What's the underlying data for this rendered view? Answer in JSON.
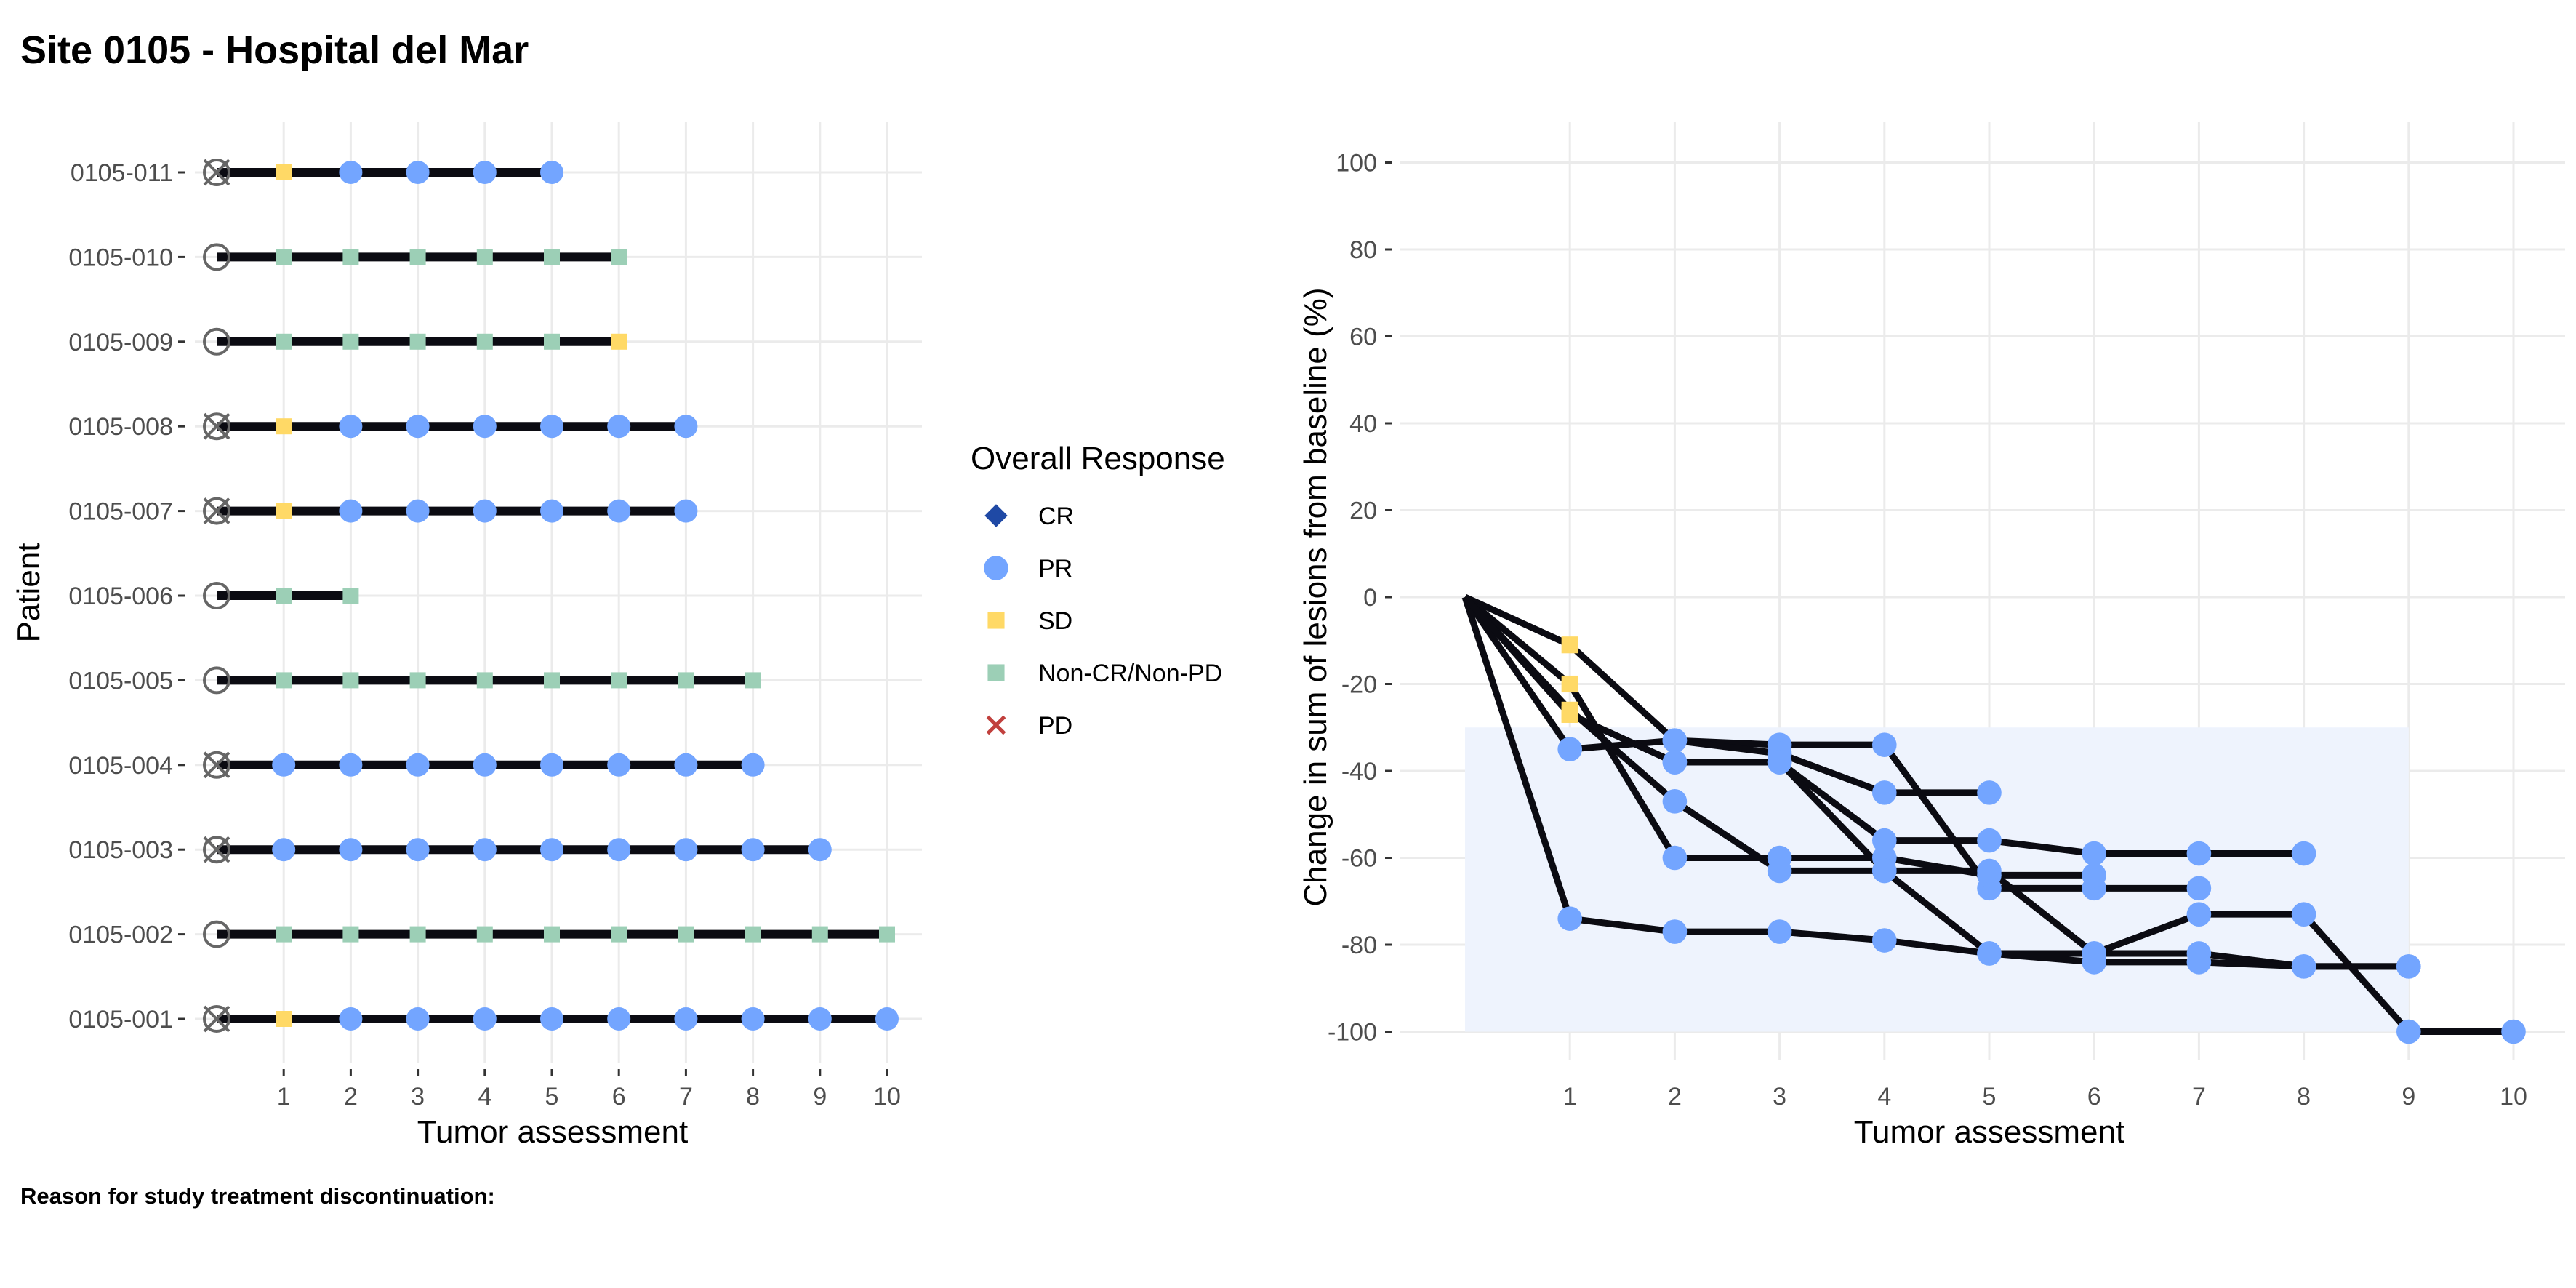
{
  "page": {
    "title": "Site 0105 - Hospital del Mar",
    "footnote": "Reason for study treatment discontinuation:"
  },
  "colors": {
    "CR": "#1f49a5",
    "PR": "#73a5ff",
    "SD": "#ffd966",
    "Non-CR/Non-PD": "#9ccfb6",
    "PD": "#c1403d",
    "line": "#0b0b12",
    "grid": "#ebebeb",
    "band": "#eef3fd",
    "baseline_marker": "#666666"
  },
  "legend": {
    "title": "Overall Response",
    "items": [
      {
        "label": "CR",
        "shape": "diamond"
      },
      {
        "label": "PR",
        "shape": "circle"
      },
      {
        "label": "SD",
        "shape": "square"
      },
      {
        "label": "Non-CR/Non-PD",
        "shape": "square"
      },
      {
        "label": "PD",
        "shape": "cross"
      }
    ]
  },
  "chart_data": [
    {
      "type": "scatter",
      "subtype": "swimmer",
      "xlabel": "Tumor assessment",
      "ylabel": "Patient",
      "xlim": [
        0,
        10
      ],
      "x_ticks": [
        1,
        2,
        3,
        4,
        5,
        6,
        7,
        8,
        9,
        10
      ],
      "grid": true,
      "baseline_marker": "circle with cross (discontinued) or circle (ongoing) at assessment 0",
      "patients": [
        {
          "id": "0105-011",
          "discontinued": true,
          "responses": [
            "SD",
            "PR",
            "PR",
            "PR",
            "PR"
          ]
        },
        {
          "id": "0105-010",
          "discontinued": false,
          "responses": [
            "Non-CR/Non-PD",
            "Non-CR/Non-PD",
            "Non-CR/Non-PD",
            "Non-CR/Non-PD",
            "Non-CR/Non-PD",
            "Non-CR/Non-PD"
          ]
        },
        {
          "id": "0105-009",
          "discontinued": false,
          "responses": [
            "Non-CR/Non-PD",
            "Non-CR/Non-PD",
            "Non-CR/Non-PD",
            "Non-CR/Non-PD",
            "Non-CR/Non-PD",
            "SD"
          ]
        },
        {
          "id": "0105-008",
          "discontinued": true,
          "responses": [
            "SD",
            "PR",
            "PR",
            "PR",
            "PR",
            "PR",
            "PR"
          ]
        },
        {
          "id": "0105-007",
          "discontinued": true,
          "responses": [
            "SD",
            "PR",
            "PR",
            "PR",
            "PR",
            "PR",
            "PR"
          ]
        },
        {
          "id": "0105-006",
          "discontinued": false,
          "responses": [
            "Non-CR/Non-PD",
            "Non-CR/Non-PD"
          ]
        },
        {
          "id": "0105-005",
          "discontinued": false,
          "responses": [
            "Non-CR/Non-PD",
            "Non-CR/Non-PD",
            "Non-CR/Non-PD",
            "Non-CR/Non-PD",
            "Non-CR/Non-PD",
            "Non-CR/Non-PD",
            "Non-CR/Non-PD",
            "Non-CR/Non-PD"
          ]
        },
        {
          "id": "0105-004",
          "discontinued": true,
          "responses": [
            "PR",
            "PR",
            "PR",
            "PR",
            "PR",
            "PR",
            "PR",
            "PR"
          ]
        },
        {
          "id": "0105-003",
          "discontinued": true,
          "responses": [
            "PR",
            "PR",
            "PR",
            "PR",
            "PR",
            "PR",
            "PR",
            "PR",
            "PR"
          ]
        },
        {
          "id": "0105-002",
          "discontinued": false,
          "responses": [
            "Non-CR/Non-PD",
            "Non-CR/Non-PD",
            "Non-CR/Non-PD",
            "Non-CR/Non-PD",
            "Non-CR/Non-PD",
            "Non-CR/Non-PD",
            "Non-CR/Non-PD",
            "Non-CR/Non-PD",
            "Non-CR/Non-PD",
            "Non-CR/Non-PD"
          ]
        },
        {
          "id": "0105-001",
          "discontinued": true,
          "responses": [
            "SD",
            "PR",
            "PR",
            "PR",
            "PR",
            "PR",
            "PR",
            "PR",
            "PR",
            "PR"
          ]
        }
      ]
    },
    {
      "type": "line",
      "subtype": "spider",
      "xlabel": "Tumor assessment",
      "ylabel": "Change in sum of lesions from baseline (%)",
      "xlim": [
        0,
        10
      ],
      "ylim": [
        -100,
        100
      ],
      "x_ticks": [
        1,
        2,
        3,
        4,
        5,
        6,
        7,
        8,
        9,
        10
      ],
      "y_ticks": [
        -100,
        -80,
        -60,
        -40,
        -20,
        0,
        20,
        40,
        60,
        80,
        100
      ],
      "grid": true,
      "shaded_band": {
        "x": [
          0,
          9
        ],
        "y": [
          -100,
          -30
        ]
      },
      "series": [
        {
          "values": [
            0,
            -11,
            -33,
            -34,
            -34,
            -67,
            -67,
            -67
          ],
          "responses": [
            "",
            "SD",
            "PR",
            "PR",
            "PR",
            "PR",
            "PR",
            "PR"
          ]
        },
        {
          "values": [
            0,
            -20,
            -60,
            -60,
            -60,
            -64,
            -64
          ],
          "responses": [
            "",
            "SD",
            "PR",
            "PR",
            "PR",
            "PR",
            "PR"
          ]
        },
        {
          "values": [
            0,
            -27,
            -38,
            -38,
            -56,
            -56,
            -59,
            -59,
            -59
          ],
          "responses": [
            "",
            "SD",
            "PR",
            "PR",
            "PR",
            "PR",
            "PR",
            "PR",
            "PR"
          ]
        },
        {
          "values": [
            0,
            -35,
            -33,
            -36,
            -45,
            -45
          ],
          "responses": [
            "",
            "PR",
            "PR",
            "PR",
            "PR",
            "PR"
          ]
        },
        {
          "values": [
            0,
            -26,
            -47,
            -63,
            -63,
            -63,
            -82,
            -82,
            -85,
            -85
          ],
          "responses": [
            "",
            "SD",
            "PR",
            "PR",
            "PR",
            "PR",
            "PR",
            "PR",
            "PR",
            "PR"
          ]
        },
        {
          "values": [
            0,
            -74,
            -77,
            -77,
            -79,
            -82,
            -84,
            -84,
            -85,
            -85
          ],
          "responses": [
            "",
            "PR",
            "PR",
            "PR",
            "PR",
            "PR",
            "PR",
            "PR",
            "PR",
            "PR"
          ]
        },
        {
          "values": [
            0,
            -27,
            -38,
            -38,
            -63,
            -82,
            -82,
            -73,
            -73,
            -100,
            -100
          ],
          "responses": [
            "",
            "SD",
            "PR",
            "PR",
            "PR",
            "PR",
            "PR",
            "PR",
            "PR",
            "PR",
            "PR"
          ]
        }
      ]
    }
  ]
}
